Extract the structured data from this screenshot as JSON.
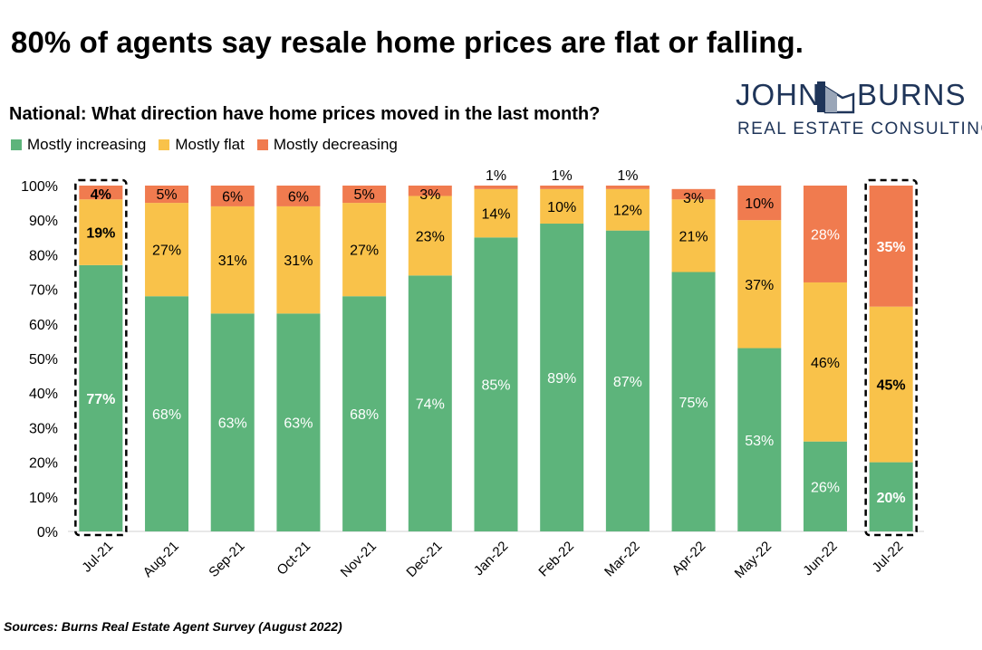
{
  "headline": "80% of agents say resale home prices are flat or falling.",
  "logo": {
    "word_left": "JOHN",
    "word_right": "BURNS",
    "tagline": "REAL ESTATE CONSULTING"
  },
  "source": "Sources: Burns Real Estate Agent Survey (August 2022)",
  "colors": {
    "increasing": "#5db47b",
    "flat": "#f9c24a",
    "decreasing": "#f07b4f",
    "logo": "#1f3559"
  },
  "chart_data": {
    "type": "bar",
    "stacked": true,
    "title": "National: What direction have home prices moved in the last month?",
    "xlabel": "",
    "ylabel": "",
    "ylim": [
      0,
      100
    ],
    "yticks": [
      "0%",
      "10%",
      "20%",
      "30%",
      "40%",
      "50%",
      "60%",
      "70%",
      "80%",
      "90%",
      "100%"
    ],
    "legend_position": "top-left",
    "grid": false,
    "highlighted_categories": [
      "Jul-21",
      "Jul-22"
    ],
    "categories": [
      "Jul-21",
      "Aug-21",
      "Sep-21",
      "Oct-21",
      "Nov-21",
      "Dec-21",
      "Jan-22",
      "Feb-22",
      "Mar-22",
      "Apr-22",
      "May-22",
      "Jun-22",
      "Jul-22"
    ],
    "series": [
      {
        "name": "Mostly increasing",
        "values": [
          77,
          68,
          63,
          63,
          68,
          74,
          85,
          89,
          87,
          75,
          53,
          26,
          20
        ]
      },
      {
        "name": "Mostly flat",
        "values": [
          19,
          27,
          31,
          31,
          27,
          23,
          14,
          10,
          12,
          21,
          37,
          46,
          45
        ]
      },
      {
        "name": "Mostly decreasing",
        "values": [
          4,
          5,
          6,
          6,
          5,
          3,
          1,
          1,
          1,
          3,
          10,
          28,
          35
        ]
      }
    ]
  }
}
